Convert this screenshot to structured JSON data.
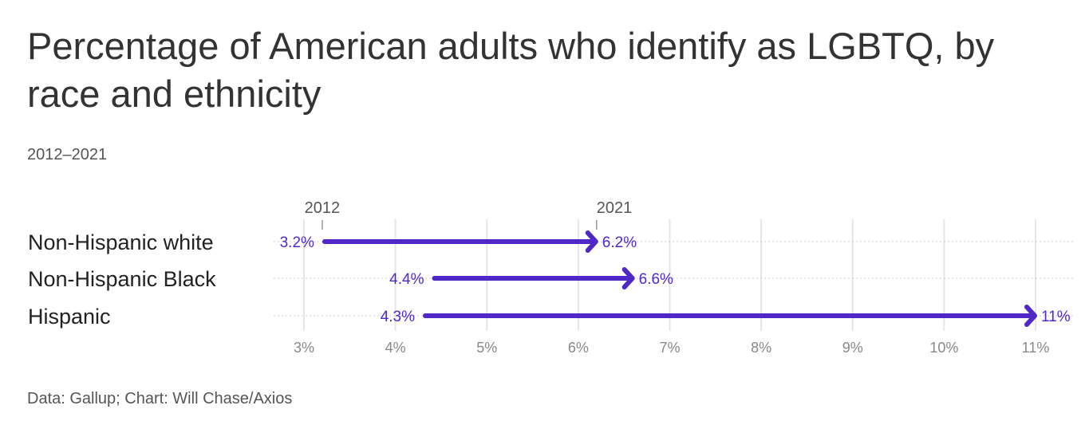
{
  "title": "Percentage of American adults who identify as LGBTQ, by race and ethnicity",
  "subtitle": "2012–2021",
  "source": "Data: Gallup; Chart: Will Chase/Axios",
  "chart_data": {
    "type": "arrow",
    "categories": [
      "Non-Hispanic white",
      "Non-Hispanic Black",
      "Hispanic"
    ],
    "series": [
      {
        "name": "2012",
        "values": [
          3.2,
          4.4,
          4.3
        ],
        "labels": [
          "3.2%",
          "4.4%",
          "4.3%"
        ]
      },
      {
        "name": "2021",
        "values": [
          6.2,
          6.6,
          11
        ],
        "labels": [
          "6.2%",
          "6.6%",
          "11%"
        ]
      }
    ],
    "xlim": [
      3,
      11
    ],
    "xticks": [
      3,
      4,
      5,
      6,
      7,
      8,
      9,
      10,
      11
    ],
    "xtick_labels": [
      "3%",
      "4%",
      "5%",
      "6%",
      "7%",
      "8%",
      "9%",
      "10%",
      "11%"
    ],
    "grid": true,
    "color": "#5028c8"
  }
}
